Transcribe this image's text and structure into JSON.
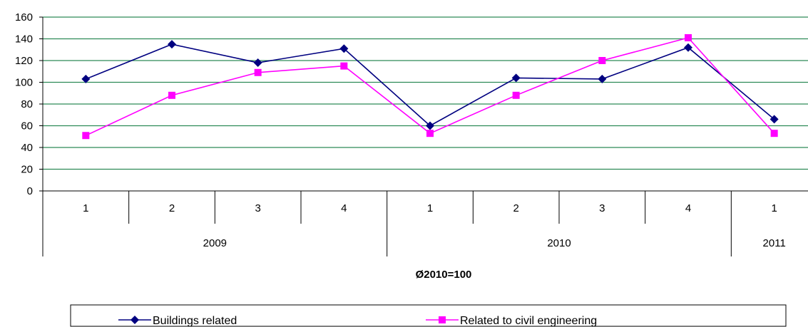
{
  "chart_data": {
    "type": "line",
    "x_quarters": [
      "1",
      "2",
      "3",
      "4",
      "1",
      "2",
      "3",
      "4",
      "1"
    ],
    "x_years": [
      {
        "label": "2009",
        "span": 4
      },
      {
        "label": "2010",
        "span": 4
      },
      {
        "label": "2011",
        "span": 1
      }
    ],
    "xlabel": "Ø2010=100",
    "ylim": [
      0,
      160
    ],
    "yticks": [
      0,
      20,
      40,
      60,
      80,
      100,
      120,
      140,
      160
    ],
    "grid": true,
    "legend_position": "bottom",
    "series": [
      {
        "name": "Buildings related",
        "marker": "diamond",
        "color": "#000080",
        "values": [
          103,
          135,
          118,
          131,
          60,
          104,
          103,
          132,
          66
        ]
      },
      {
        "name": "Related to civil engineering",
        "marker": "square",
        "color": "#ff00ff",
        "values": [
          51,
          88,
          109,
          115,
          53,
          88,
          120,
          141,
          53
        ]
      }
    ],
    "gridline_color": "#2e8b57"
  }
}
